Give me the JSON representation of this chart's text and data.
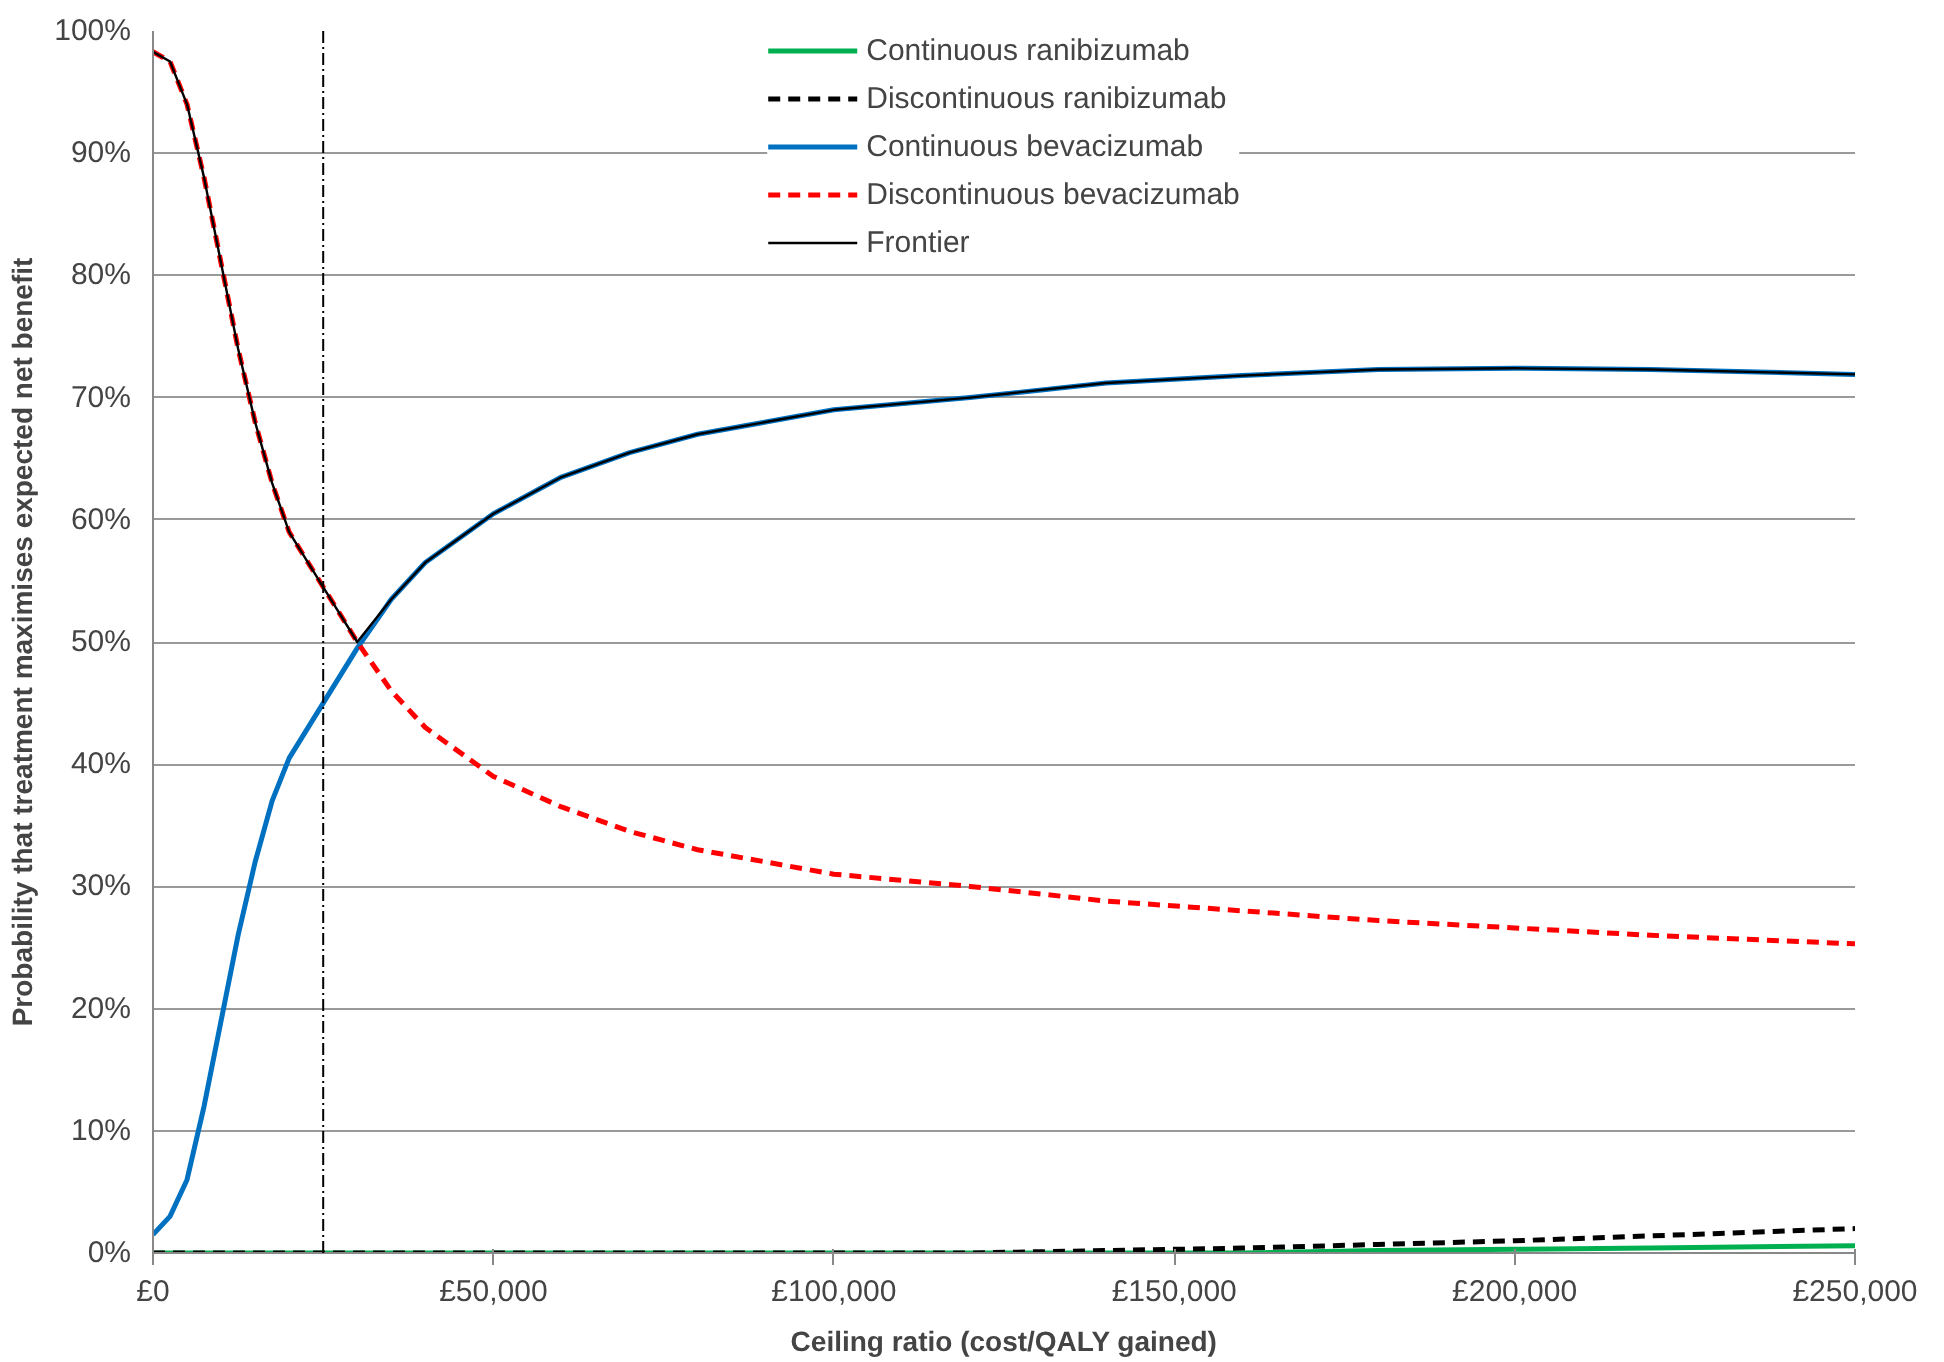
{
  "chart_data": {
    "type": "line",
    "xlabel": "Ceiling ratio (cost/QALY gained)",
    "ylabel": "Probability that treatment maximises expected net benefit",
    "x": [
      0,
      2500,
      5000,
      7500,
      10000,
      12500,
      15000,
      17500,
      20000,
      25000,
      30000,
      35000,
      40000,
      50000,
      60000,
      70000,
      80000,
      90000,
      100000,
      120000,
      140000,
      160000,
      180000,
      200000,
      220000,
      250000
    ],
    "series": [
      {
        "name": "Continuous ranibizumab",
        "color": "#00b050",
        "line_style": "solid",
        "values": [
          0,
          0,
          0,
          0,
          0,
          0,
          0,
          0,
          0,
          0,
          0,
          0,
          0,
          0,
          0,
          0,
          0,
          0,
          0,
          0,
          0,
          0,
          0.2,
          0.3,
          0.4,
          0.6
        ]
      },
      {
        "name": "Discontinuous ranibizumab",
        "color": "#000000",
        "line_style": "dashed",
        "values": [
          0,
          0,
          0,
          0,
          0,
          0,
          0,
          0,
          0,
          0,
          0,
          0,
          0,
          0,
          0,
          0,
          0,
          0,
          0,
          0,
          0.2,
          0.4,
          0.7,
          1.0,
          1.4,
          2.0
        ]
      },
      {
        "name": "Continuous bevacizumab",
        "color": "#0070c0",
        "line_style": "solid",
        "values": [
          1.5,
          3,
          6,
          12,
          19,
          26,
          32,
          37,
          40.5,
          45,
          49.5,
          53.5,
          56.5,
          60.5,
          63.5,
          65.5,
          67,
          68,
          69,
          70,
          71.2,
          71.8,
          72.3,
          72.4,
          72.3,
          71.9
        ]
      },
      {
        "name": "Discontinuous bevacizumab",
        "color": "#ff0000",
        "line_style": "dashed",
        "values": [
          98.3,
          97.5,
          94,
          88,
          81,
          74,
          68,
          63,
          59,
          54.5,
          50,
          46,
          43,
          39,
          36.5,
          34.5,
          33,
          32,
          31,
          30,
          28.8,
          28,
          27.2,
          26.6,
          26,
          25.3
        ]
      },
      {
        "name": "Frontier",
        "color": "#000000",
        "line_style": "solid",
        "values": [
          98.3,
          97.5,
          94,
          88,
          81,
          74,
          68,
          63,
          59,
          54.5,
          50,
          53.5,
          56.5,
          60.5,
          63.5,
          65.5,
          67,
          68,
          69,
          70,
          71.2,
          71.8,
          72.3,
          72.4,
          72.3,
          71.9
        ]
      }
    ],
    "xlim": [
      0,
      250000
    ],
    "xticks": [
      {
        "value": 0,
        "label": "£0"
      },
      {
        "value": 50000,
        "label": "£50,000"
      },
      {
        "value": 100000,
        "label": "£100,000"
      },
      {
        "value": 150000,
        "label": "£150,000"
      },
      {
        "value": 200000,
        "label": "£200,000"
      },
      {
        "value": 250000,
        "label": "£250,000"
      }
    ],
    "ylim": [
      0,
      100
    ],
    "yticks": [
      {
        "value": 0,
        "label": "0%"
      },
      {
        "value": 10,
        "label": "10%"
      },
      {
        "value": 20,
        "label": "20%"
      },
      {
        "value": 30,
        "label": "30%"
      },
      {
        "value": 40,
        "label": "40%"
      },
      {
        "value": 50,
        "label": "50%"
      },
      {
        "value": 60,
        "label": "60%"
      },
      {
        "value": 70,
        "label": "70%"
      },
      {
        "value": 80,
        "label": "80%"
      },
      {
        "value": 90,
        "label": "90%"
      },
      {
        "value": 100,
        "label": "100%"
      }
    ],
    "ref_lines": [
      {
        "axis": "x",
        "value": 25000,
        "color": "#000000",
        "line_style": "dashdot"
      }
    ],
    "grid": "y",
    "legend": "top",
    "marker": "none"
  }
}
